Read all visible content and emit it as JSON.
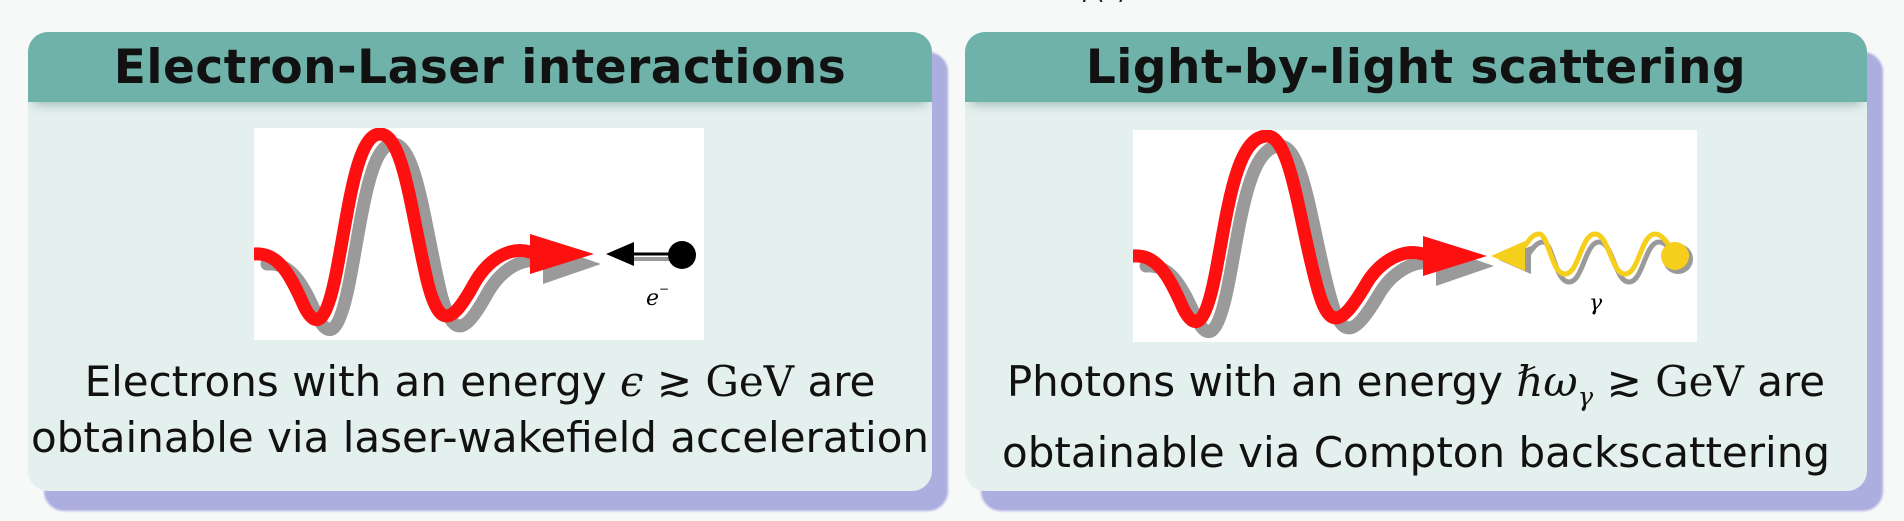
{
  "top_fragment": ", (                                                                                )",
  "blocks": [
    {
      "title": "Electron-Laser interactions",
      "figure": {
        "particle_label": "e",
        "particle_label_sup": "−"
      },
      "caption": {
        "line1_pre": "Electrons with an energy ",
        "line1_math_symbol": "ϵ",
        "line1_math_relation": " ≳ ",
        "line1_math_unit": "GeV",
        "line1_post": " are",
        "line2": "obtainable via laser-wakefield acceleration"
      }
    },
    {
      "title": "Light-by-light scattering",
      "figure": {
        "particle_label": "γ"
      },
      "caption": {
        "line1_pre": "Photons with an energy ",
        "line1_math_symbol": "ℏω",
        "line1_math_sub": "γ",
        "line1_math_relation": " ≳ ",
        "line1_math_unit": "GeV",
        "line1_post": " are",
        "line2": "obtainable via Compton backscattering"
      }
    }
  ],
  "colors": {
    "block_header": "#6fb2aa",
    "block_body": "#e4f0ee",
    "block_shadow": "#acaee0",
    "laser_pulse": "#ff1010",
    "pulse_shadow": "#9a9a9a",
    "electron": "#000000",
    "photon": "#f5cf1c"
  },
  "icons": [
    "laser-pulse-icon",
    "electron-icon",
    "photon-icon"
  ]
}
